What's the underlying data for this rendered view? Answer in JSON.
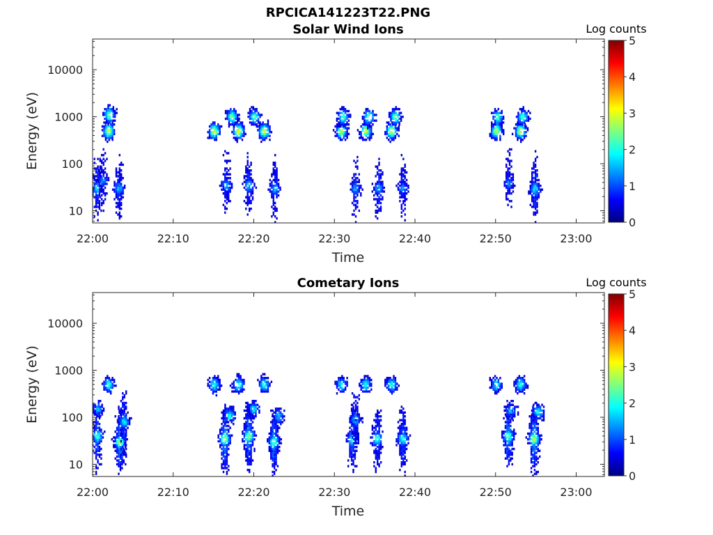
{
  "figure_title": "RPCICA141223T22.PNG",
  "colormap": [
    "#00007f",
    "#0000ff",
    "#007fff",
    "#00ffff",
    "#7fff7f",
    "#ffff00",
    "#ff7f00",
    "#ff0000",
    "#7f0000"
  ],
  "chart_data": [
    {
      "type": "heatmap",
      "title": "Solar Wind Ions",
      "xlabel": "Time",
      "ylabel": "Energy (eV)",
      "x_ticks": [
        "22:00",
        "22:10",
        "22:20",
        "22:30",
        "22:40",
        "22:50",
        "23:00"
      ],
      "x_range_minutes": [
        0,
        63.5
      ],
      "y_scale": "log",
      "y_ticks": [
        "10",
        "100",
        "1000",
        "10000"
      ],
      "y_range": [
        5.5,
        45000
      ],
      "colorbar": {
        "title": "Log counts",
        "range": [
          0,
          5
        ],
        "ticks": [
          "0",
          "1",
          "2",
          "3",
          "4",
          "5"
        ]
      },
      "blobs": [
        {
          "t": 0.5,
          "e": 30,
          "c": 1.6
        },
        {
          "t": 1.2,
          "e": 45,
          "c": 1.3
        },
        {
          "t": 1.9,
          "e": 500,
          "c": 2.9
        },
        {
          "t": 2.0,
          "e": 1100,
          "c": 2.4
        },
        {
          "t": 3.2,
          "e": 30,
          "c": 1.6
        },
        {
          "t": 15.0,
          "e": 500,
          "c": 2.9
        },
        {
          "t": 16.5,
          "e": 35,
          "c": 1.5
        },
        {
          "t": 17.2,
          "e": 1000,
          "c": 2.4
        },
        {
          "t": 18.0,
          "e": 500,
          "c": 3.0
        },
        {
          "t": 19.3,
          "e": 35,
          "c": 1.6
        },
        {
          "t": 20.0,
          "e": 1000,
          "c": 2.3
        },
        {
          "t": 21.2,
          "e": 500,
          "c": 2.9
        },
        {
          "t": 22.5,
          "e": 30,
          "c": 1.5
        },
        {
          "t": 30.8,
          "e": 500,
          "c": 2.8
        },
        {
          "t": 31.0,
          "e": 1000,
          "c": 2.3
        },
        {
          "t": 32.5,
          "e": 30,
          "c": 1.4
        },
        {
          "t": 33.8,
          "e": 500,
          "c": 2.9
        },
        {
          "t": 34.2,
          "e": 1000,
          "c": 2.3
        },
        {
          "t": 35.4,
          "e": 30,
          "c": 1.5
        },
        {
          "t": 37.0,
          "e": 500,
          "c": 2.9
        },
        {
          "t": 37.5,
          "e": 1000,
          "c": 2.4
        },
        {
          "t": 38.4,
          "e": 30,
          "c": 1.4
        },
        {
          "t": 50.0,
          "e": 500,
          "c": 2.8
        },
        {
          "t": 50.2,
          "e": 1000,
          "c": 2.2
        },
        {
          "t": 51.6,
          "e": 40,
          "c": 1.3
        },
        {
          "t": 53.0,
          "e": 500,
          "c": 2.9
        },
        {
          "t": 53.3,
          "e": 1000,
          "c": 2.3
        },
        {
          "t": 54.8,
          "e": 30,
          "c": 1.8
        }
      ]
    },
    {
      "type": "heatmap",
      "title": "Cometary Ions",
      "xlabel": "Time",
      "ylabel": "Energy (eV)",
      "x_ticks": [
        "22:00",
        "22:10",
        "22:20",
        "22:30",
        "22:40",
        "22:50",
        "23:00"
      ],
      "x_range_minutes": [
        0,
        63.5
      ],
      "y_scale": "log",
      "y_ticks": [
        "10",
        "100",
        "1000",
        "10000"
      ],
      "y_range": [
        5.5,
        45000
      ],
      "colorbar": {
        "title": "Log counts",
        "range": [
          0,
          5
        ],
        "ticks": [
          "0",
          "1",
          "2",
          "3",
          "4",
          "5"
        ]
      },
      "blobs": [
        {
          "t": 0.5,
          "e": 40,
          "c": 2.2
        },
        {
          "t": 0.6,
          "e": 150,
          "c": 1.5
        },
        {
          "t": 1.9,
          "e": 500,
          "c": 2.0
        },
        {
          "t": 3.3,
          "e": 30,
          "c": 2.6
        },
        {
          "t": 3.8,
          "e": 80,
          "c": 1.8
        },
        {
          "t": 15.0,
          "e": 500,
          "c": 2.0
        },
        {
          "t": 16.3,
          "e": 35,
          "c": 2.8
        },
        {
          "t": 16.9,
          "e": 110,
          "c": 2.0
        },
        {
          "t": 18.0,
          "e": 500,
          "c": 2.1
        },
        {
          "t": 19.3,
          "e": 40,
          "c": 2.7
        },
        {
          "t": 19.9,
          "e": 150,
          "c": 1.8
        },
        {
          "t": 21.2,
          "e": 500,
          "c": 2.0
        },
        {
          "t": 22.4,
          "e": 30,
          "c": 2.4
        },
        {
          "t": 23.0,
          "e": 110,
          "c": 1.6
        },
        {
          "t": 30.8,
          "e": 500,
          "c": 1.9
        },
        {
          "t": 32.2,
          "e": 35,
          "c": 2.2
        },
        {
          "t": 32.5,
          "e": 90,
          "c": 1.5
        },
        {
          "t": 33.8,
          "e": 500,
          "c": 2.0
        },
        {
          "t": 35.2,
          "e": 35,
          "c": 2.2
        },
        {
          "t": 37.0,
          "e": 500,
          "c": 2.0
        },
        {
          "t": 38.4,
          "e": 35,
          "c": 2.1
        },
        {
          "t": 50.0,
          "e": 500,
          "c": 1.9
        },
        {
          "t": 51.5,
          "e": 40,
          "c": 2.4
        },
        {
          "t": 51.8,
          "e": 140,
          "c": 1.6
        },
        {
          "t": 53.0,
          "e": 500,
          "c": 2.0
        },
        {
          "t": 54.7,
          "e": 35,
          "c": 2.9
        },
        {
          "t": 55.2,
          "e": 130,
          "c": 2.0
        }
      ]
    }
  ]
}
